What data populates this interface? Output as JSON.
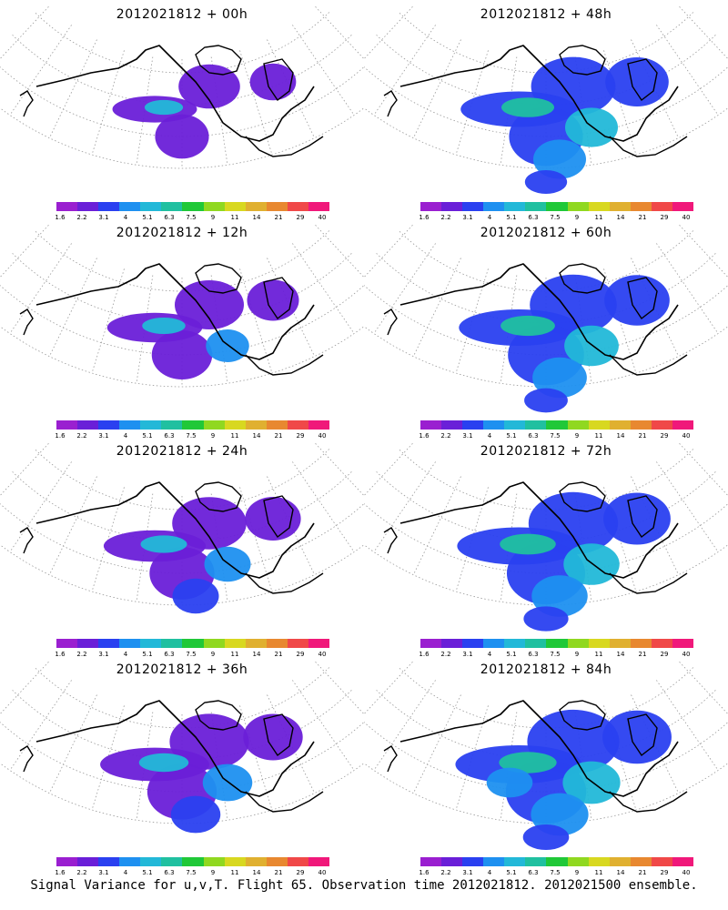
{
  "panels": [
    {
      "title": "2012021812 + 00h",
      "spread": 0.35
    },
    {
      "title": "2012021812 + 48h",
      "spread": 0.8
    },
    {
      "title": "2012021812 + 12h",
      "spread": 0.5
    },
    {
      "title": "2012021812 + 60h",
      "spread": 0.85
    },
    {
      "title": "2012021812 + 24h",
      "spread": 0.6
    },
    {
      "title": "2012021812 + 72h",
      "spread": 0.9
    },
    {
      "title": "2012021812 + 36h",
      "spread": 0.7
    },
    {
      "title": "2012021812 + 84h",
      "spread": 0.95
    }
  ],
  "colorbar": {
    "labels": [
      "1.6",
      "2.2",
      "3.1",
      "4",
      "5.1",
      "6.3",
      "7.5",
      "9",
      "11",
      "14",
      "21",
      "29",
      "40"
    ],
    "colors": [
      "#9a1fd0",
      "#6a1fd8",
      "#2a40f0",
      "#1e90f0",
      "#22b8d8",
      "#20c0a0",
      "#20c838",
      "#90d820",
      "#d8d820",
      "#e0b030",
      "#e88830",
      "#f04848",
      "#f0187a"
    ]
  },
  "caption": "Signal Variance for u,v,T. Flight 65. Observation time 2012021812. 2012021500 ensemble."
}
